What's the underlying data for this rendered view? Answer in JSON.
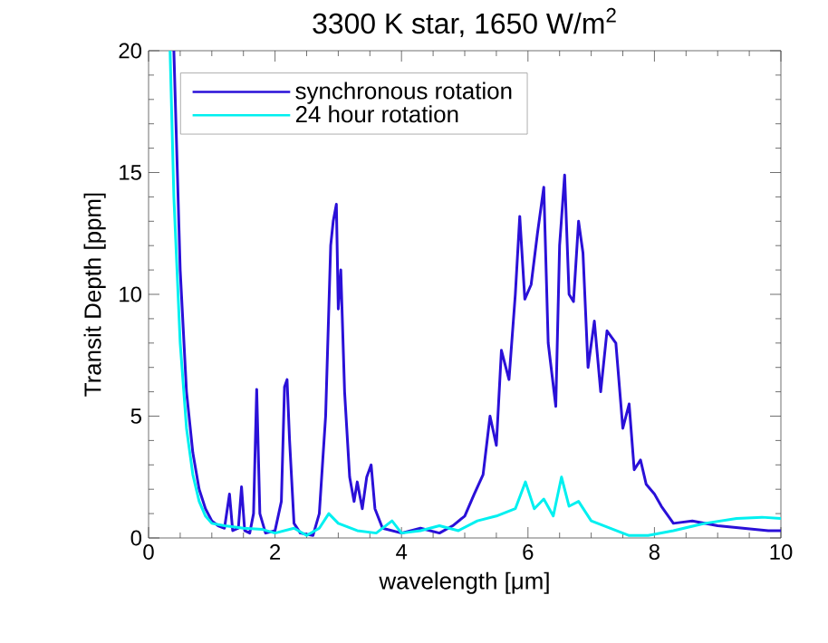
{
  "chart_data": {
    "type": "line",
    "title": "3300 K star, 1650 W/m$^{2}$",
    "xlabel": "wavelength [μm]",
    "ylabel": "Transit Depth [ppm]",
    "xlim": [
      0,
      10
    ],
    "ylim": [
      0,
      20
    ],
    "xticks": [
      0,
      2,
      4,
      6,
      8,
      10
    ],
    "yticks": [
      0,
      5,
      10,
      15,
      20
    ],
    "grid": false,
    "legend": "top left",
    "marker": "none",
    "line_style": "solid",
    "series": [
      {
        "name": "synchronous rotation",
        "color": "#2a10d8",
        "x": [
          0.4,
          0.5,
          0.6,
          0.7,
          0.8,
          0.9,
          1.0,
          1.1,
          1.2,
          1.28,
          1.33,
          1.42,
          1.47,
          1.52,
          1.6,
          1.66,
          1.71,
          1.76,
          1.85,
          2.0,
          2.1,
          2.15,
          2.19,
          2.23,
          2.3,
          2.4,
          2.6,
          2.7,
          2.8,
          2.88,
          2.92,
          2.97,
          3.0,
          3.04,
          3.1,
          3.18,
          3.25,
          3.3,
          3.38,
          3.45,
          3.52,
          3.58,
          3.7,
          4.0,
          4.3,
          4.6,
          4.81,
          5.0,
          5.15,
          5.29,
          5.4,
          5.5,
          5.58,
          5.7,
          5.8,
          5.87,
          5.95,
          6.05,
          6.15,
          6.25,
          6.32,
          6.44,
          6.5,
          6.58,
          6.65,
          6.72,
          6.8,
          6.87,
          6.95,
          7.05,
          7.15,
          7.25,
          7.39,
          7.5,
          7.6,
          7.68,
          7.78,
          7.87,
          8.0,
          8.11,
          8.3,
          8.6,
          9.0,
          9.4,
          9.8,
          10
        ],
        "values": [
          20,
          11,
          6,
          3.5,
          2,
          1.2,
          0.7,
          0.5,
          0.4,
          1.8,
          0.3,
          0.4,
          2.1,
          0.3,
          0.2,
          1,
          6.1,
          1,
          0.2,
          0.3,
          1.5,
          6.2,
          6.5,
          4,
          0.6,
          0.2,
          0.1,
          1.0,
          5,
          12,
          13,
          13.7,
          9.4,
          11,
          6,
          2.5,
          1.5,
          2.3,
          1.2,
          2.5,
          3.0,
          1.2,
          0.4,
          0.2,
          0.4,
          0.2,
          0.5,
          0.9,
          1.8,
          2.6,
          5,
          3.8,
          7.7,
          6.5,
          10,
          13.2,
          9.8,
          10.4,
          12.5,
          14.4,
          8,
          5.4,
          12,
          14.9,
          10,
          9.7,
          13,
          11.7,
          7,
          8.9,
          6,
          8.5,
          8.0,
          4.5,
          5.5,
          2.8,
          3.2,
          2.2,
          1.8,
          1.3,
          0.6,
          0.7,
          0.5,
          0.4,
          0.3,
          0.3
        ]
      },
      {
        "name": "24 hour rotation",
        "color": "#00f0f0",
        "x": [
          0.34,
          0.4,
          0.5,
          0.6,
          0.7,
          0.8,
          0.9,
          1.0,
          1.2,
          1.5,
          1.8,
          2.0,
          2.3,
          2.5,
          2.7,
          2.85,
          3.0,
          3.3,
          3.6,
          3.85,
          4.0,
          4.3,
          4.6,
          4.9,
          5.2,
          5.5,
          5.8,
          5.96,
          6.1,
          6.25,
          6.4,
          6.53,
          6.65,
          6.8,
          7.0,
          7.3,
          7.6,
          7.9,
          8.3,
          8.8,
          9.3,
          9.7,
          10
        ],
        "values": [
          20,
          14,
          8,
          4.5,
          2.6,
          1.5,
          0.9,
          0.6,
          0.5,
          0.4,
          0.35,
          0.2,
          0.4,
          0.1,
          0.4,
          1.0,
          0.6,
          0.3,
          0.2,
          0.7,
          0.2,
          0.3,
          0.5,
          0.3,
          0.7,
          0.9,
          1.2,
          2.3,
          1.2,
          1.6,
          0.9,
          2.5,
          1.3,
          1.5,
          0.7,
          0.4,
          0.1,
          0.1,
          0.3,
          0.6,
          0.8,
          0.85,
          0.8
        ]
      }
    ]
  }
}
